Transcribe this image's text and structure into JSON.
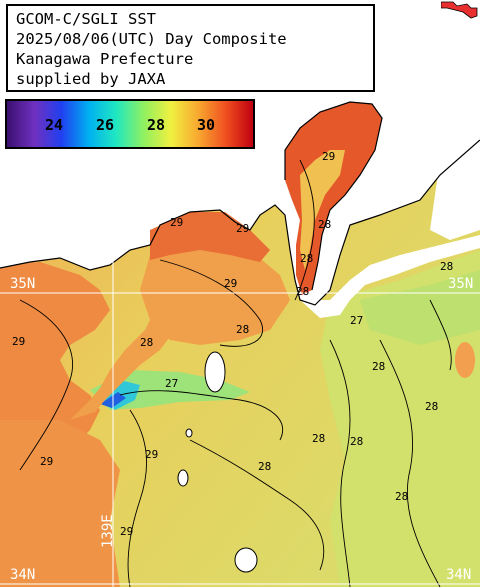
{
  "title": {
    "lines": [
      "GCOM-C/SGLI SST",
      "2025/08/06(UTC) Day Composite",
      "Kanagawa Prefecture",
      "supplied by JAXA"
    ]
  },
  "legend": {
    "ticks": [
      "24",
      "26",
      "28",
      "30"
    ],
    "colors": [
      "#3a1070",
      "#7030c0",
      "#2040f0",
      "#00b0f0",
      "#20e8c0",
      "#90f060",
      "#f0f040",
      "#f8a830",
      "#f05020",
      "#c00010"
    ]
  },
  "grid": {
    "lat_labels": [
      {
        "key": "l35w",
        "text": "35N"
      },
      {
        "key": "l35e",
        "text": "35N"
      },
      {
        "key": "l34w",
        "text": "34N"
      },
      {
        "key": "l34e",
        "text": "34N"
      }
    ],
    "lon_label": "139E"
  },
  "map": {
    "isotherm_labels": [
      "29",
      "28",
      "28",
      "28",
      "29",
      "29",
      "29",
      "28",
      "28",
      "29",
      "27",
      "27",
      "28",
      "28",
      "29",
      "28",
      "28",
      "28",
      "29",
      "29",
      "28",
      "28"
    ],
    "colors": {
      "warm_sea": "#ee8a42",
      "mid_sea": "#f2ae4a",
      "cool_sea": "#d8e068",
      "cooler_sea": "#a8e070",
      "coldest": "#30c8d8",
      "land": "#ffffff",
      "hot_bay": "#e4582a"
    }
  }
}
